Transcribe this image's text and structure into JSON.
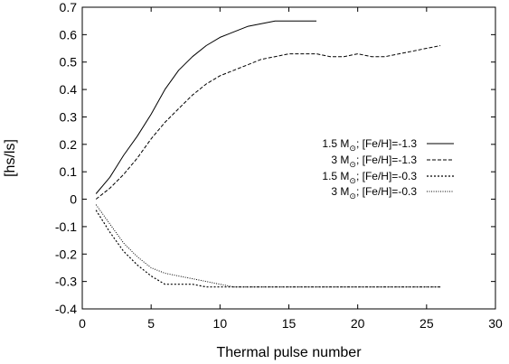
{
  "chart_data": {
    "type": "line",
    "xlabel": "Thermal pulse number",
    "ylabel": "[hs/ls]",
    "xlim": [
      0,
      30
    ],
    "ylim": [
      -0.4,
      0.7
    ],
    "xticks": [
      0,
      5,
      10,
      15,
      20,
      25,
      30
    ],
    "yticks": [
      -0.4,
      -0.3,
      -0.2,
      -0.1,
      0,
      0.1,
      0.2,
      0.3,
      0.4,
      0.5,
      0.6,
      0.7
    ],
    "xtick_labels": [
      "0",
      "5",
      "10",
      "15",
      "20",
      "25",
      "30"
    ],
    "ytick_labels": [
      "-0.4",
      "-0.3",
      "-0.2",
      "-0.1",
      "0",
      "0.1",
      "0.2",
      "0.3",
      "0.4",
      "0.5",
      "0.6",
      "0.7"
    ],
    "grid": false,
    "legend_position": "right",
    "series": [
      {
        "name": "1.5 M",
        "name_sub": "⊙",
        "name_suffix": "; [Fe/H]=-1.3",
        "style": "solid",
        "x": [
          1,
          2,
          3,
          4,
          5,
          6,
          7,
          8,
          9,
          10,
          11,
          12,
          13,
          14,
          15,
          16,
          17
        ],
        "y": [
          0.02,
          0.08,
          0.16,
          0.23,
          0.31,
          0.4,
          0.47,
          0.52,
          0.56,
          0.59,
          0.61,
          0.63,
          0.64,
          0.65,
          0.65,
          0.65,
          0.65
        ]
      },
      {
        "name": "3 M",
        "name_sub": "⊙",
        "name_suffix": "; [Fe/H]=-1.3",
        "style": "dashed",
        "x": [
          1,
          2,
          3,
          4,
          5,
          6,
          7,
          8,
          9,
          10,
          11,
          12,
          13,
          14,
          15,
          16,
          17,
          18,
          19,
          20,
          21,
          22,
          23,
          24,
          25,
          26
        ],
        "y": [
          0.0,
          0.04,
          0.09,
          0.15,
          0.22,
          0.28,
          0.33,
          0.38,
          0.42,
          0.45,
          0.47,
          0.49,
          0.51,
          0.52,
          0.53,
          0.53,
          0.53,
          0.52,
          0.52,
          0.53,
          0.52,
          0.52,
          0.53,
          0.54,
          0.55,
          0.56
        ]
      },
      {
        "name": "1.5 M",
        "name_sub": "⊙",
        "name_suffix": "; [Fe/H]=-0.3",
        "style": "dotted",
        "x": [
          1,
          2,
          3,
          4,
          5,
          6,
          7,
          8,
          9,
          10,
          11,
          12,
          13,
          14,
          15,
          16,
          17,
          18,
          19,
          20,
          21,
          22,
          23,
          24,
          25,
          26
        ],
        "y": [
          -0.04,
          -0.12,
          -0.19,
          -0.24,
          -0.28,
          -0.31,
          -0.31,
          -0.31,
          -0.32,
          -0.32,
          -0.32,
          -0.32,
          -0.32,
          -0.32,
          -0.32,
          -0.32,
          -0.32,
          -0.32,
          -0.32,
          -0.32,
          -0.32,
          -0.32,
          -0.32,
          -0.32,
          -0.32,
          -0.32
        ]
      },
      {
        "name": "3 M",
        "name_sub": "⊙",
        "name_suffix": "; [Fe/H]=-0.3",
        "style": "finedot",
        "x": [
          1,
          2,
          3,
          4,
          5,
          6,
          7,
          8,
          9,
          10,
          11,
          12,
          13,
          14,
          15,
          16,
          17,
          18,
          19,
          20,
          21,
          22,
          23,
          24,
          25,
          26
        ],
        "y": [
          -0.02,
          -0.09,
          -0.16,
          -0.21,
          -0.25,
          -0.27,
          -0.28,
          -0.29,
          -0.3,
          -0.31,
          -0.32,
          -0.32,
          -0.32,
          -0.32,
          -0.32,
          -0.32,
          -0.32,
          -0.32,
          -0.32,
          -0.32,
          -0.32,
          -0.32,
          -0.32,
          -0.32,
          -0.32,
          -0.32
        ]
      }
    ]
  }
}
